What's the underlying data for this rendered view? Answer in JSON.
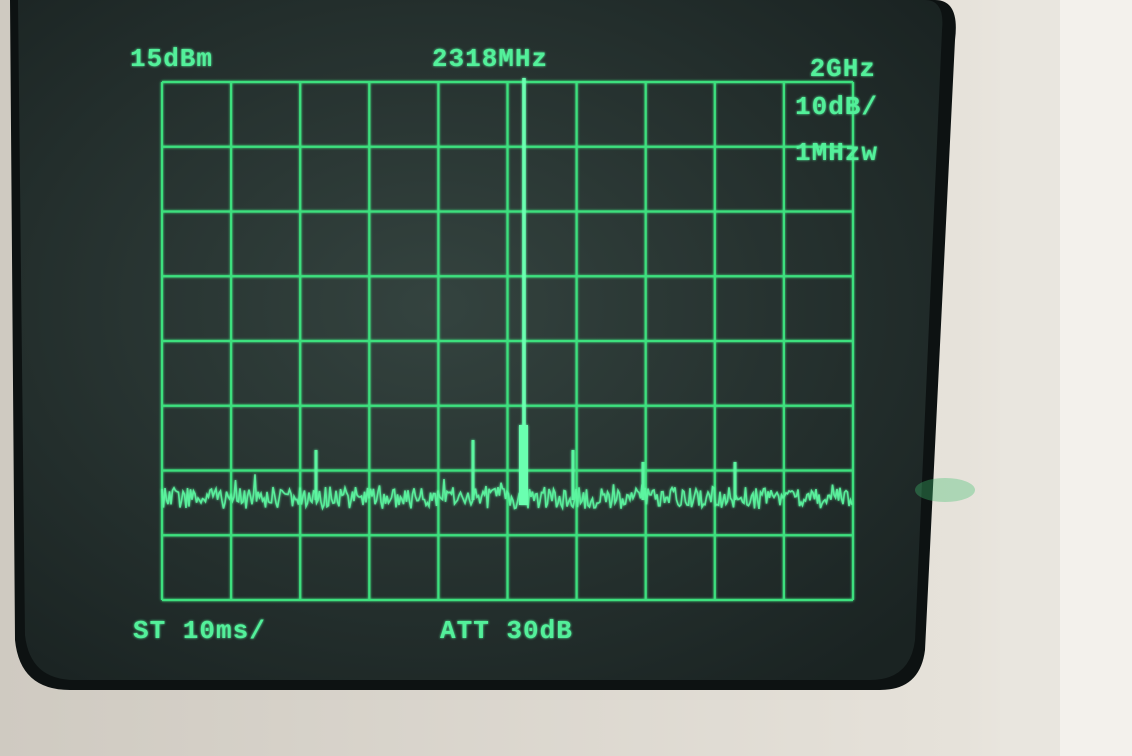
{
  "screen": {
    "reference_level": "15dBm",
    "center_frequency": "2318MHz",
    "span": "2GHz",
    "scale": "10dB/",
    "bandwidth": "1MHzw",
    "sweep_time": "ST 10ms/",
    "attenuation": "ATT 30dB"
  }
}
